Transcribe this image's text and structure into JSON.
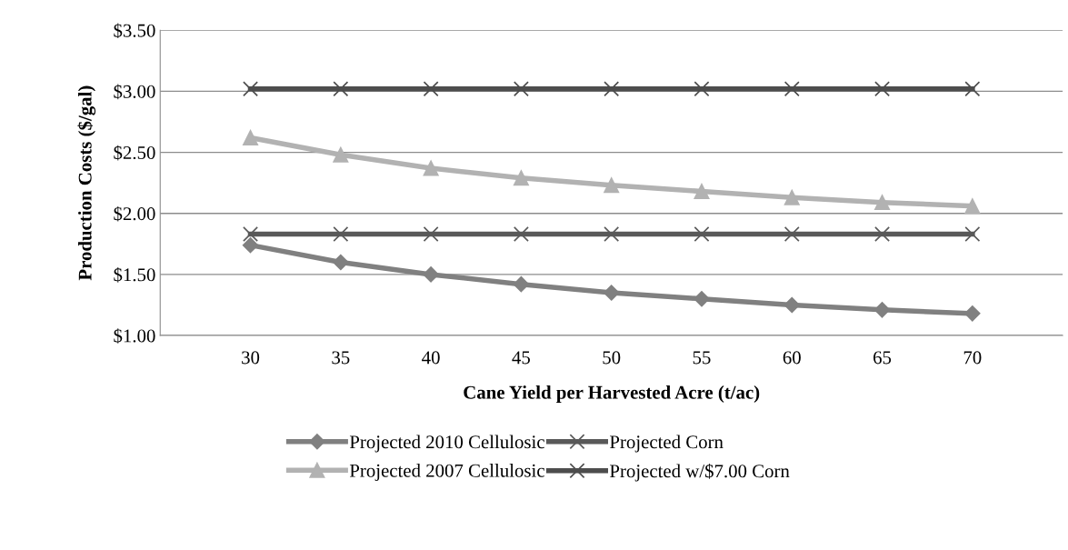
{
  "chart_data": {
    "type": "line",
    "xlabel": "Cane Yield per Harvested Acre (t/ac)",
    "ylabel": "Production Costs ($/gal)",
    "x": [
      30,
      35,
      40,
      45,
      50,
      55,
      60,
      65,
      70
    ],
    "xlim": [
      25,
      75
    ],
    "xticks": [
      30,
      35,
      40,
      45,
      50,
      55,
      60,
      65,
      70
    ],
    "ylim": [
      1.0,
      3.5
    ],
    "yticks": [
      {
        "value": 1.0,
        "label": "$1.00"
      },
      {
        "value": 1.5,
        "label": "$1.50"
      },
      {
        "value": 2.0,
        "label": "$2.00"
      },
      {
        "value": 2.5,
        "label": "$2.50"
      },
      {
        "value": 3.0,
        "label": "$3.00"
      },
      {
        "value": 3.5,
        "label": "$3.50"
      }
    ],
    "grid": "y",
    "legend": "bottom",
    "line_style": "solid",
    "series": [
      {
        "name": "Projected 2010 Cellulosic",
        "color": "#808080",
        "marker": "diamond",
        "values": [
          1.74,
          1.6,
          1.5,
          1.42,
          1.35,
          1.3,
          1.25,
          1.21,
          1.18
        ]
      },
      {
        "name": "Projected 2007 Cellulosic",
        "color": "#b2b2b2",
        "marker": "triangle",
        "values": [
          2.62,
          2.48,
          2.37,
          2.29,
          2.23,
          2.18,
          2.13,
          2.09,
          2.06
        ]
      },
      {
        "name": "Projected Corn",
        "color": "#595959",
        "marker": "cross",
        "values": [
          1.83,
          1.83,
          1.83,
          1.83,
          1.83,
          1.83,
          1.83,
          1.83,
          1.83
        ]
      },
      {
        "name": "Projected w/$7.00 Corn",
        "color": "#4d4d4d",
        "marker": "cross",
        "values": [
          3.02,
          3.02,
          3.02,
          3.02,
          3.02,
          3.02,
          3.02,
          3.02,
          3.02
        ]
      }
    ]
  }
}
